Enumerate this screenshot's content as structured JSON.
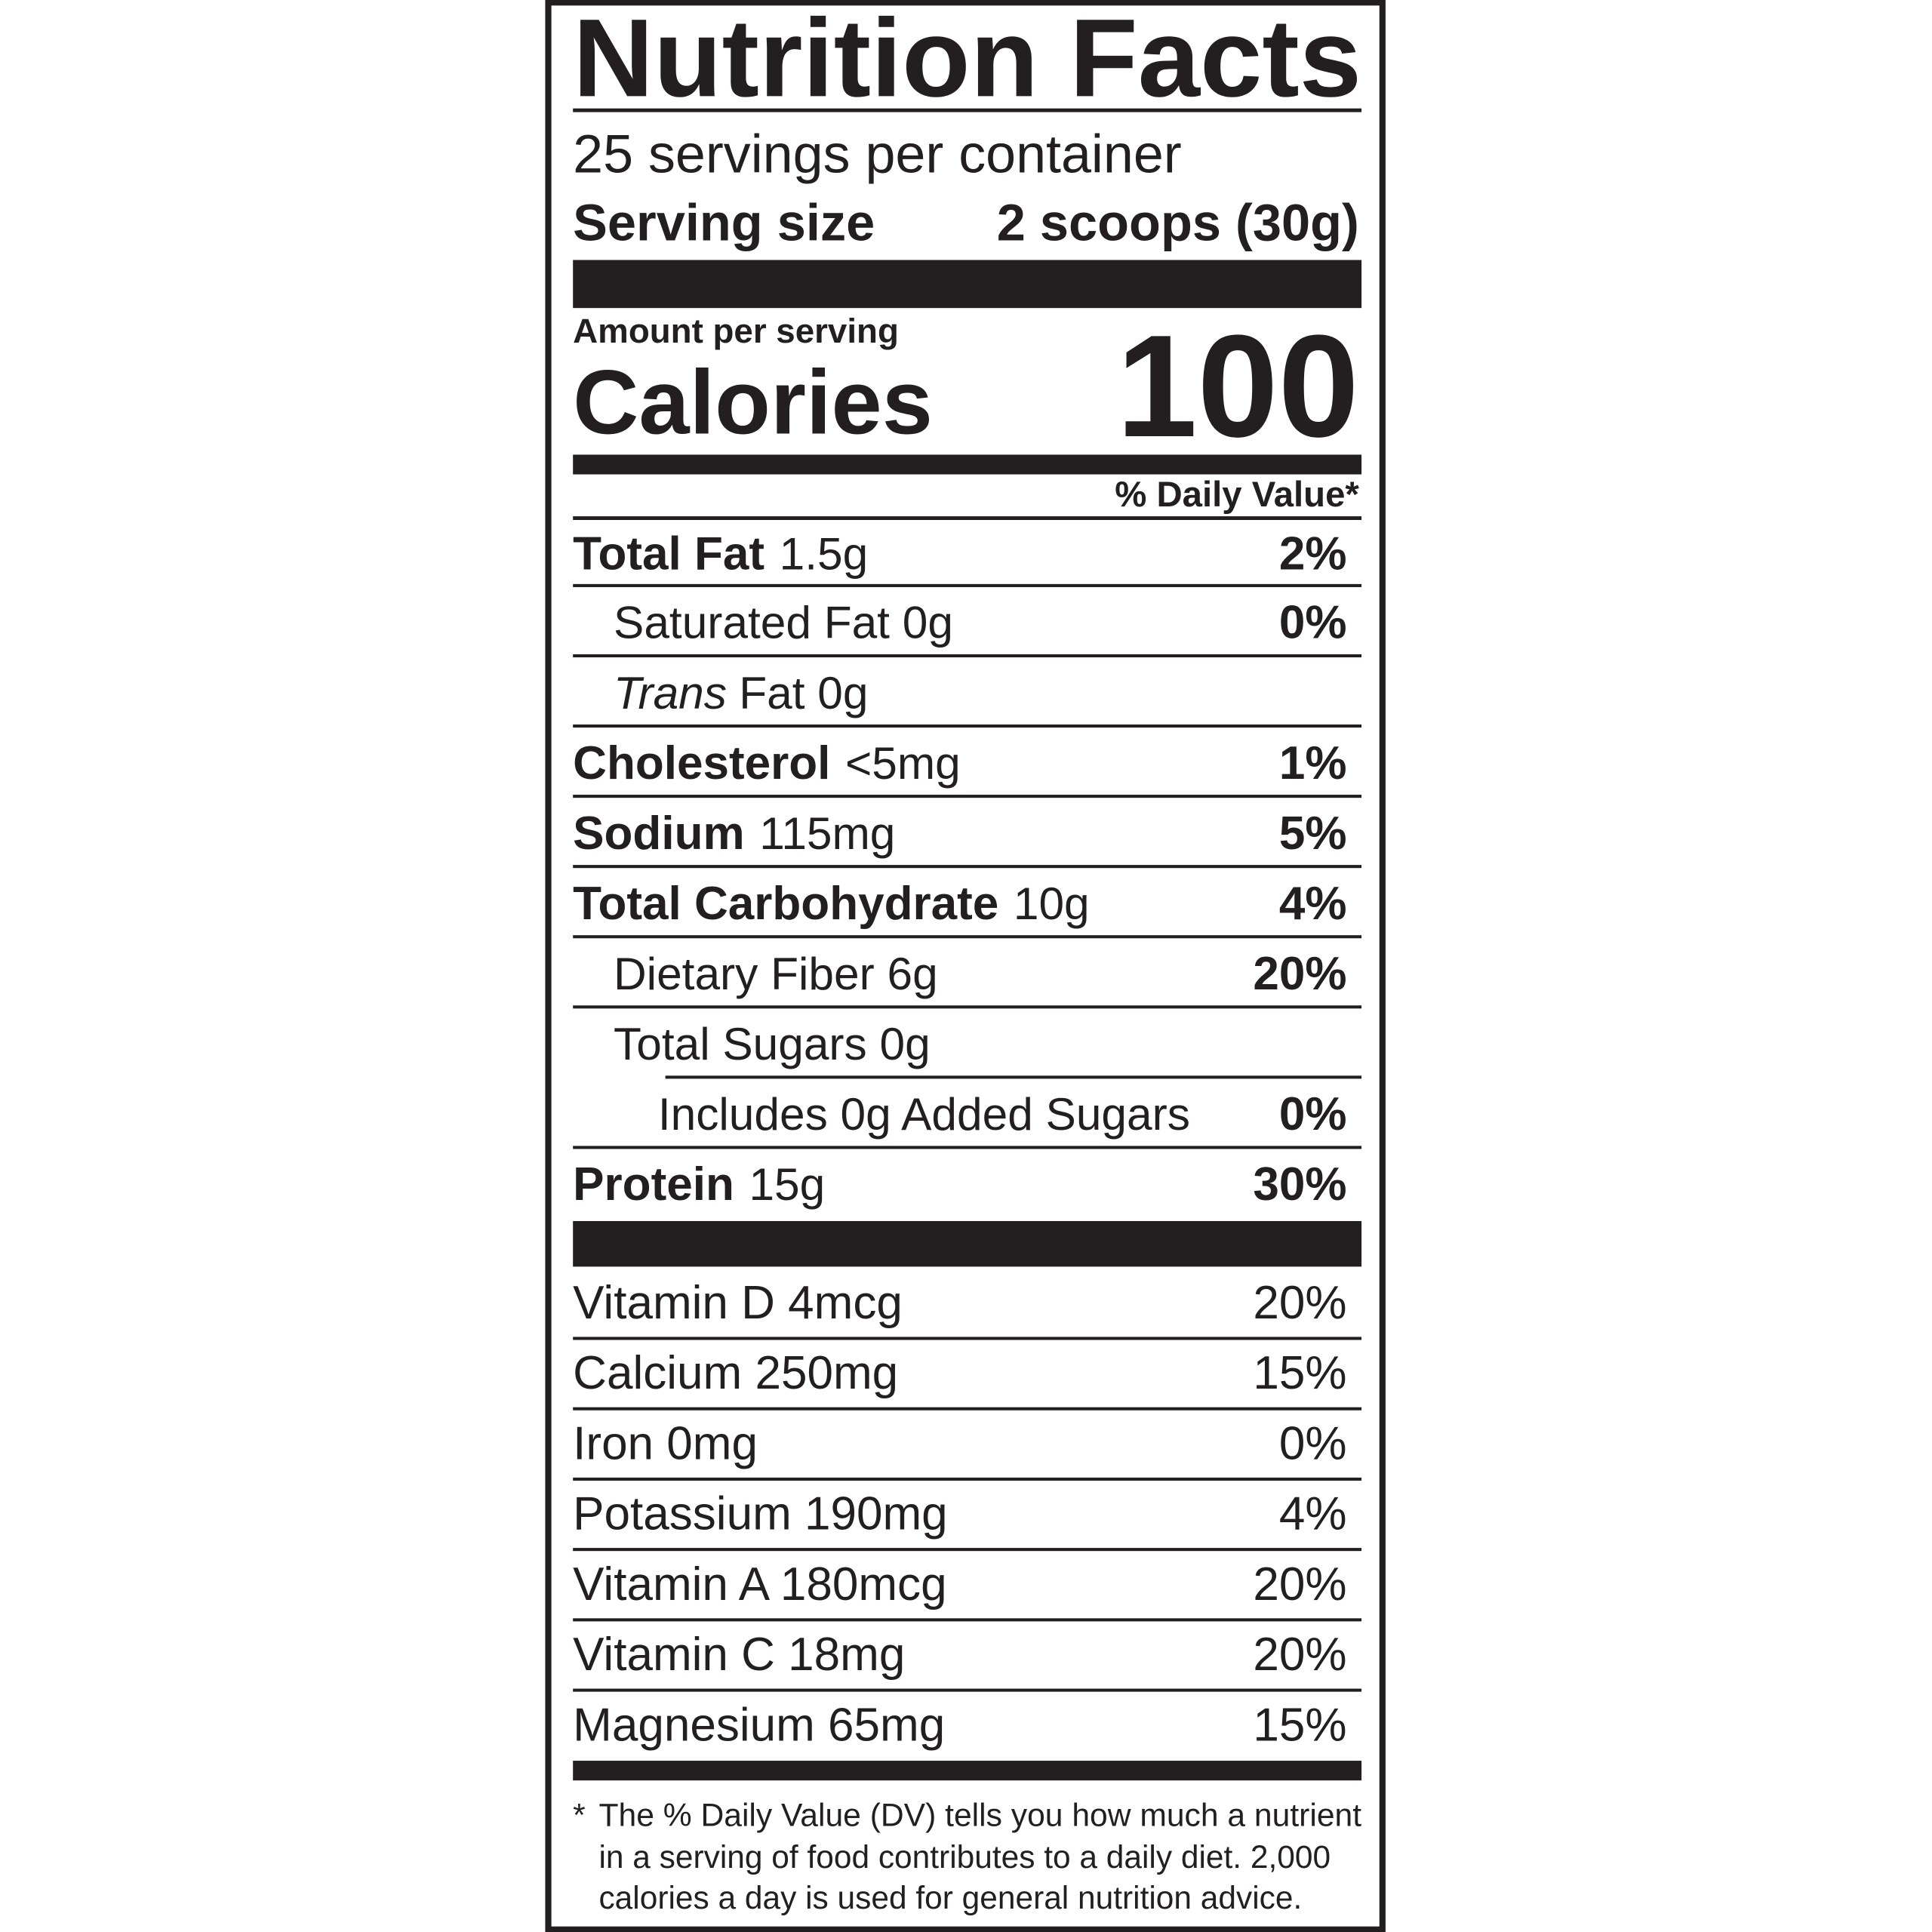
{
  "title": "Nutrition Facts",
  "servings_per_container": "25 servings per container",
  "serving_size": {
    "label": "Serving size",
    "value": "2 scoops (30g)"
  },
  "amount_per_serving": "Amount per serving",
  "calories": {
    "label": "Calories",
    "value": "100"
  },
  "daily_value_header": "% Daily Value*",
  "nutrients": [
    {
      "name": "Total Fat",
      "amount": "1.5g",
      "dv": "2%"
    },
    {
      "name": "Saturated Fat 0g",
      "dv": "0%"
    },
    {
      "name": "Trans",
      "amount": "Fat 0g"
    },
    {
      "name": "Cholesterol",
      "amount": "<5mg",
      "dv": "1%"
    },
    {
      "name": "Sodium",
      "amount": "115mg",
      "dv": "5%"
    },
    {
      "name": "Total Carbohydrate",
      "amount": "10g",
      "dv": "4%"
    },
    {
      "name": "Dietary Fiber 6g",
      "dv": "20%"
    },
    {
      "name": "Total Sugars 0g"
    },
    {
      "name": "Includes 0g Added Sugars",
      "dv": "0%"
    },
    {
      "name": "Protein",
      "amount": "15g",
      "dv": "30%"
    }
  ],
  "vitamins": [
    {
      "name": "Vitamin D 4mcg",
      "dv": "20%"
    },
    {
      "name": "Calcium 250mg",
      "dv": "15%"
    },
    {
      "name": "Iron 0mg",
      "dv": "0%"
    },
    {
      "name": "Potassium 190mg",
      "dv": "4%"
    },
    {
      "name": "Vitamin A 180mcg",
      "dv": "20%"
    },
    {
      "name": "Vitamin C 18mg",
      "dv": "20%"
    },
    {
      "name": "Magnesium 65mg",
      "dv": "15%"
    }
  ],
  "footnote": {
    "marker": "*",
    "lines": [
      "The % Daily Value (DV) tells you how much a nutrient",
      "in a serving of food contributes to a daily diet. 2,000",
      "calories a day is used for general nutrition advice."
    ]
  }
}
